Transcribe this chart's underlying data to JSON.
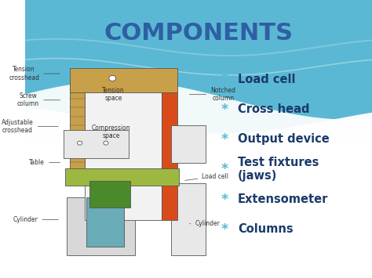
{
  "title": "COMPONENTS",
  "title_color": "#2E5FA3",
  "title_fontsize": 22,
  "bullet_items": [
    "Load cell",
    "Cross head",
    "Output device",
    "Test fixtures\n(jaws)",
    "Extensometer",
    "Columns"
  ],
  "bullet_color": "#1A3A6B",
  "bullet_fontsize": 10.5,
  "bullet_symbol": "*",
  "bullet_symbol_color": "#5BB8D4",
  "label_fontsize": 5.5,
  "label_color": "#333333",
  "col_tan": "#C8A04A",
  "col_orange": "#D94C1A",
  "col_orange2": "#E06020",
  "col_yellow_green": "#9CB840",
  "col_blue_green": "#6AACB8",
  "col_green_dark": "#4A8A2A",
  "col_edge": "#555555",
  "col_lgray": "#D8D8D8",
  "col_mgray": "#E8E8E8",
  "col_white": "#FFFFFF",
  "sky_color": "#5BB8D4"
}
